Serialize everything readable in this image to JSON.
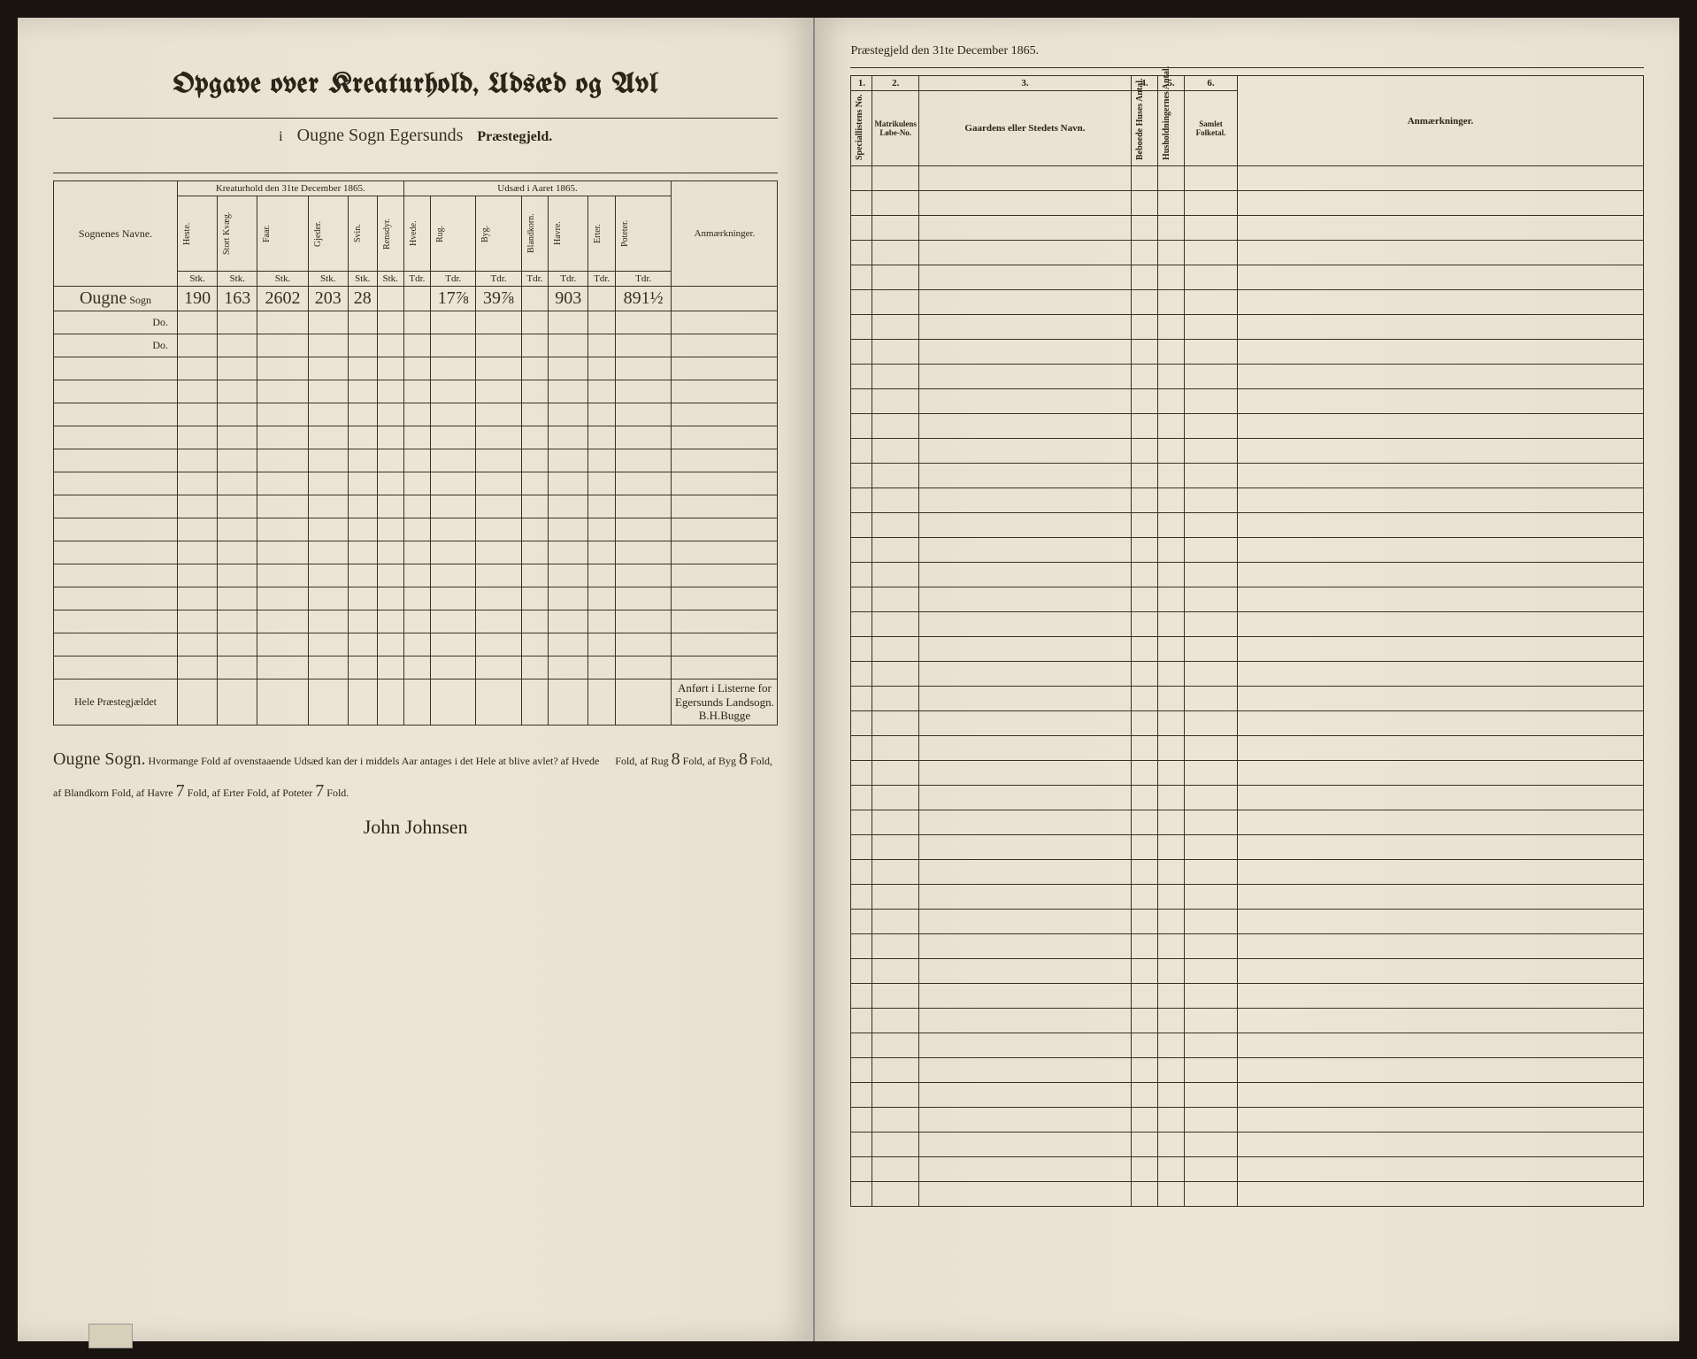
{
  "leftPage": {
    "title": "Opgave over Kreaturhold, Udsæd og Avl",
    "subtitle_prefix": "i",
    "subtitle_cursive": "Ougne Sogn Egersunds",
    "subtitle_suffix": "Præstegjeld.",
    "kreaturhold_header": "Kreaturhold den 31te December 1865.",
    "udsaed_header": "Udsæd i Aaret 1865.",
    "sognenames_label": "Sognenes Navne.",
    "anmaerkninger_label": "Anmærkninger.",
    "kreatur_cols": [
      "Heste.",
      "Stort Kvæg.",
      "Faar.",
      "Gjeder.",
      "Svin.",
      "Rensdyr."
    ],
    "udsaed_cols": [
      "Hvede.",
      "Rug.",
      "Byg.",
      "Blandkorn.",
      "Havre.",
      "Erter.",
      "Poteter."
    ],
    "unit_row_k": [
      "Stk.",
      "Stk.",
      "Stk.",
      "Stk.",
      "Stk.",
      "Stk."
    ],
    "unit_row_u": [
      "Tdr.",
      "Tdr.",
      "Tdr.",
      "Tdr.",
      "Tdr.",
      "Tdr.",
      "Tdr."
    ],
    "data_row_name": "Ougne",
    "data_row_suffix": "Sogn",
    "data_k": [
      "190",
      "163",
      "2602",
      "203",
      "28",
      ""
    ],
    "data_u": [
      "",
      "17⅞",
      "39⅞",
      "",
      "903",
      "",
      "891½"
    ],
    "do_label": "Do.",
    "hele_label": "Hele Præstegjældet",
    "annotation": "Anført i Listerne for Egersunds Landsogn.",
    "annotation_sig": "B.H.Bugge",
    "footer_lead": "Ougne Sogn.",
    "footer_text_1": "Hvormange Fold af ovenstaaende Udsæd kan der i middels Aar antages i det Hele at blive avlet? af Hvede",
    "footer_fold": "Fold,",
    "footer_rug": "af Rug",
    "footer_rug_v": "8",
    "footer_byg": "Fold, af Byg",
    "footer_byg_v": "8",
    "footer_bland": "Fold, af Blandkorn",
    "footer_bland_v": "",
    "footer_havre": "Fold, af Havre",
    "footer_havre_v": "7",
    "footer_erter": "Fold, af Erter",
    "footer_erter_v": "",
    "footer_pot": "Fold, af Poteter",
    "footer_pot_v": "7",
    "footer_end": "Fold.",
    "signature": "John Johnsen"
  },
  "rightPage": {
    "header": "Præstegjeld den 31te December 1865.",
    "col_nums": [
      "1.",
      "2.",
      "3.",
      "4.",
      "5.",
      "6."
    ],
    "col1_label": "Speciallistens No.",
    "col2_label": "Matrikulens Løbe-No.",
    "col3_label": "Gaardens eller Stedets Navn.",
    "col4_label": "Beboede Huses Antal.",
    "col5_label": "Husholdningernes Antal.",
    "col6_label": "Samlet Folketal.",
    "anm_label": "Anmærkninger.",
    "empty_rows": 42
  }
}
